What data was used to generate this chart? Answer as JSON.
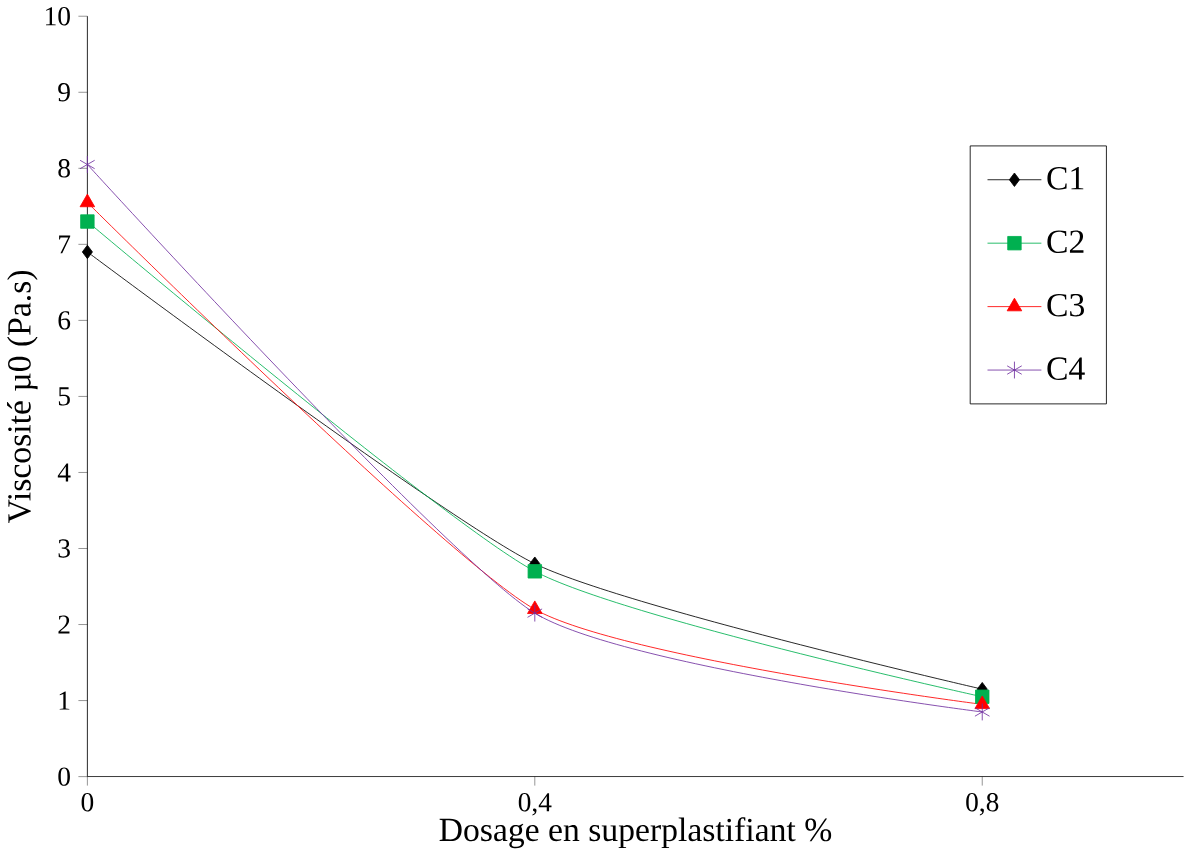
{
  "chart_data": {
    "type": "line",
    "xlabel": "Dosage en superplastifiant %",
    "ylabel": "Viscosité µ0 (Pa.s)",
    "x": [
      0,
      0.4,
      0.8
    ],
    "xlim": [
      0,
      0.98
    ],
    "xticks": [
      0,
      {
        "value": 0.4,
        "label": "0,4"
      },
      {
        "value": 0.8,
        "label": "0,8"
      }
    ],
    "ylim": [
      0,
      10
    ],
    "yticks": [
      0,
      1,
      2,
      3,
      4,
      5,
      6,
      7,
      8,
      9,
      10
    ],
    "grid": false,
    "legend": "top right",
    "series": [
      {
        "name": "C1",
        "color": "#000000",
        "marker": "diamond",
        "values": [
          6.9,
          2.8,
          1.15
        ]
      },
      {
        "name": "C2",
        "color": "#00b050",
        "marker": "square",
        "values": [
          7.3,
          2.7,
          1.05
        ]
      },
      {
        "name": "C3",
        "color": "#ff0000",
        "marker": "triangle",
        "values": [
          7.55,
          2.2,
          0.95
        ]
      },
      {
        "name": "C4",
        "color": "#7030a0",
        "marker": "cross",
        "values": [
          8.05,
          2.15,
          0.85
        ]
      }
    ]
  }
}
